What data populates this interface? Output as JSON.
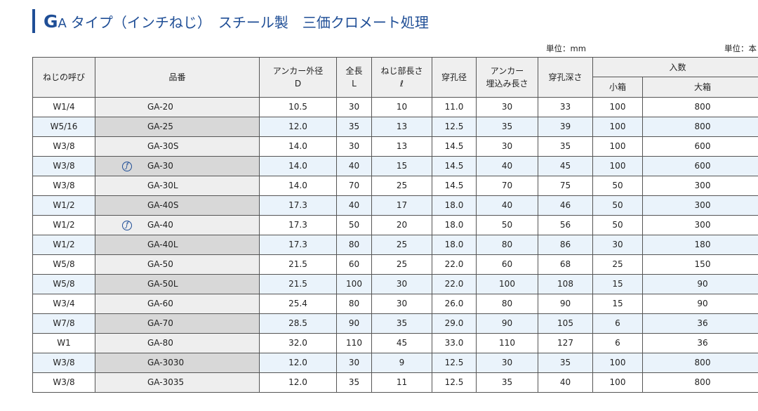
{
  "title": {
    "lead_letter": "G",
    "lead_rest": "A",
    "text": "タイプ（インチねじ）　スチール製　三価クロメート処理"
  },
  "units": {
    "mm": "単位：mm",
    "pieces": "単位：本"
  },
  "headers": {
    "thread": "ねじの呼び",
    "part": "品番",
    "anchor_od": "アンカー外径",
    "anchor_od_sym": "D",
    "length": "全長",
    "length_sym": "L",
    "thread_len": "ねじ部長さ",
    "thread_len_sym": "ℓ",
    "drill": "穿孔径",
    "embed_1": "アンカー",
    "embed_2": "埋込み長さ",
    "depth": "穿孔深さ",
    "qty": "入数",
    "small_box": "小箱",
    "large_box": "大箱"
  },
  "mark_icon": "shield-mark-icon",
  "rows": [
    {
      "thread": "W1/4",
      "part": "GA-20",
      "mark": false,
      "d": "10.5",
      "l": "30",
      "tl": "10",
      "drill": "11.0",
      "embed": "30",
      "depth": "33",
      "small": "100",
      "large": "800"
    },
    {
      "thread": "W5/16",
      "part": "GA-25",
      "mark": false,
      "d": "12.0",
      "l": "35",
      "tl": "13",
      "drill": "12.5",
      "embed": "35",
      "depth": "39",
      "small": "100",
      "large": "800"
    },
    {
      "thread": "W3/8",
      "part": "GA-30S",
      "mark": false,
      "d": "14.0",
      "l": "30",
      "tl": "13",
      "drill": "14.5",
      "embed": "30",
      "depth": "35",
      "small": "100",
      "large": "600"
    },
    {
      "thread": "W3/8",
      "part": "GA-30",
      "mark": true,
      "d": "14.0",
      "l": "40",
      "tl": "15",
      "drill": "14.5",
      "embed": "40",
      "depth": "45",
      "small": "100",
      "large": "600"
    },
    {
      "thread": "W3/8",
      "part": "GA-30L",
      "mark": false,
      "d": "14.0",
      "l": "70",
      "tl": "25",
      "drill": "14.5",
      "embed": "70",
      "depth": "75",
      "small": "50",
      "large": "300"
    },
    {
      "thread": "W1/2",
      "part": "GA-40S",
      "mark": false,
      "d": "17.3",
      "l": "40",
      "tl": "17",
      "drill": "18.0",
      "embed": "40",
      "depth": "46",
      "small": "50",
      "large": "300"
    },
    {
      "thread": "W1/2",
      "part": "GA-40",
      "mark": true,
      "d": "17.3",
      "l": "50",
      "tl": "20",
      "drill": "18.0",
      "embed": "50",
      "depth": "56",
      "small": "50",
      "large": "300"
    },
    {
      "thread": "W1/2",
      "part": "GA-40L",
      "mark": false,
      "d": "17.3",
      "l": "80",
      "tl": "25",
      "drill": "18.0",
      "embed": "80",
      "depth": "86",
      "small": "30",
      "large": "180"
    },
    {
      "thread": "W5/8",
      "part": "GA-50",
      "mark": false,
      "d": "21.5",
      "l": "60",
      "tl": "25",
      "drill": "22.0",
      "embed": "60",
      "depth": "68",
      "small": "25",
      "large": "150"
    },
    {
      "thread": "W5/8",
      "part": "GA-50L",
      "mark": false,
      "d": "21.5",
      "l": "100",
      "tl": "30",
      "drill": "22.0",
      "embed": "100",
      "depth": "108",
      "small": "15",
      "large": "90"
    },
    {
      "thread": "W3/4",
      "part": "GA-60",
      "mark": false,
      "d": "25.4",
      "l": "80",
      "tl": "30",
      "drill": "26.0",
      "embed": "80",
      "depth": "90",
      "small": "15",
      "large": "90"
    },
    {
      "thread": "W7/8",
      "part": "GA-70",
      "mark": false,
      "d": "28.5",
      "l": "90",
      "tl": "35",
      "drill": "29.0",
      "embed": "90",
      "depth": "105",
      "small": "6",
      "large": "36"
    },
    {
      "thread": "W1",
      "part": "GA-80",
      "mark": false,
      "d": "32.0",
      "l": "110",
      "tl": "45",
      "drill": "33.0",
      "embed": "110",
      "depth": "127",
      "small": "6",
      "large": "36"
    },
    {
      "thread": "W3/8",
      "part": "GA-3030",
      "mark": false,
      "d": "12.0",
      "l": "30",
      "tl": "9",
      "drill": "12.5",
      "embed": "30",
      "depth": "35",
      "small": "100",
      "large": "800"
    },
    {
      "thread": "W3/8",
      "part": "GA-3035",
      "mark": false,
      "d": "12.0",
      "l": "35",
      "tl": "11",
      "drill": "12.5",
      "embed": "35",
      "depth": "40",
      "small": "100",
      "large": "800"
    }
  ]
}
